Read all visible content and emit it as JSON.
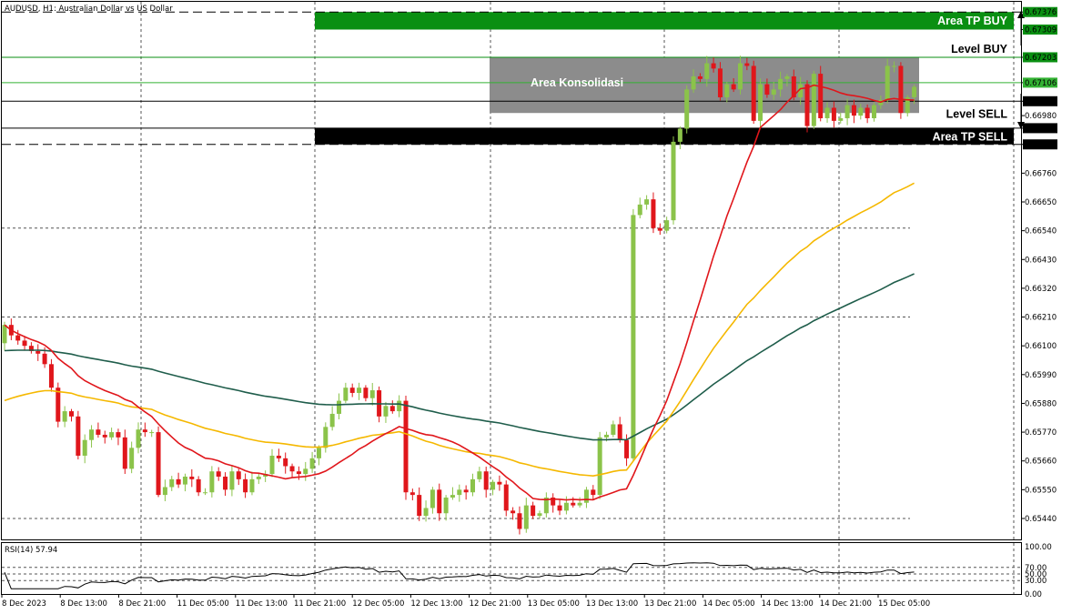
{
  "symbol_header": "AUDUSD, H1:  Australian Dollar vs US Dollar",
  "rsi_label": "RSI(14) 57.94",
  "colors": {
    "bull": "#8bc34a",
    "bear": "#e0161b",
    "ma_fast": "#e0161b",
    "ma_mid": "#f5b800",
    "ma_slow": "#1f5d4b",
    "tp_buy": "#0a8f12",
    "tp_sell": "#000000",
    "consolidation": "#8c8c8c"
  },
  "price_axis": {
    "min": 0.6536,
    "max": 0.67415,
    "ticks": [
      "0.67203",
      "0.67106",
      "0.67035",
      "0.66980",
      "0.66932",
      "0.66870",
      "0.66760",
      "0.66650",
      "0.66540",
      "0.66430",
      "0.66320",
      "0.66210",
      "0.66100",
      "0.65990",
      "0.65880",
      "0.65770",
      "0.65660",
      "0.65550",
      "0.65440"
    ],
    "highlighted_ticks": [
      "0.67376",
      "0.67309",
      "0.67203",
      "0.67106"
    ],
    "dark_ticks": [
      "0.67035",
      "0.66932",
      "0.66870"
    ]
  },
  "time_axis": {
    "labels": [
      "8 Dec 2023",
      "8 Dec 13:00",
      "8 Dec 21:00",
      "11 Dec 05:00",
      "11 Dec 13:00",
      "11 Dec 21:00",
      "12 Dec 05:00",
      "12 Dec 13:00",
      "12 Dec 21:00",
      "13 Dec 05:00",
      "13 Dec 13:00",
      "13 Dec 21:00",
      "14 Dec 05:00",
      "14 Dec 13:00",
      "14 Dec 21:00",
      "15 Dec 05:00"
    ]
  },
  "rsi_axis": {
    "ticks": [
      "100.00",
      "70.00",
      "50.00",
      "30.00",
      "0.00"
    ]
  },
  "annotations": {
    "tp_buy_label": "Area TP BUY",
    "level_buy_label": "Level BUY",
    "consolidation_label": "Area Konsolidasi",
    "level_sell_label": "Level SELL",
    "tp_sell_label": "Area TP SELL",
    "tp_buy_zone": [
      0.67309,
      0.67376
    ],
    "level_buy": 0.67203,
    "consolidation_zone": [
      0.6699,
      0.67203
    ],
    "level_sell": 0.67035,
    "tp_sell_zone": [
      0.6687,
      0.66932
    ]
  },
  "chart_data": {
    "type": "candlestick",
    "open": [
      0.6611,
      0.6618,
      0.6614,
      0.6612,
      0.661,
      0.6608,
      0.6607,
      0.6603,
      0.6594,
      0.6581,
      0.6585,
      0.6583,
      0.6568,
      0.6574,
      0.6578,
      0.6576,
      0.6575,
      0.6577,
      0.6575,
      0.6563,
      0.6571,
      0.6578,
      0.6577,
      0.6577,
      0.6553,
      0.6556,
      0.6559,
      0.6557,
      0.656,
      0.6559,
      0.6554,
      0.6554,
      0.6562,
      0.656,
      0.6555,
      0.6562,
      0.6559,
      0.6554,
      0.6559,
      0.656,
      0.6561,
      0.6568,
      0.6567,
      0.6564,
      0.6562,
      0.6561,
      0.6563,
      0.6567,
      0.6571,
      0.6579,
      0.6584,
      0.6589,
      0.6594,
      0.6592,
      0.6594,
      0.659,
      0.6593,
      0.6583,
      0.6587,
      0.6585,
      0.6589,
      0.6554,
      0.6553,
      0.6545,
      0.6548,
      0.6555,
      0.6546,
      0.6552,
      0.6553,
      0.6555,
      0.6554,
      0.6559,
      0.6562,
      0.6555,
      0.6558,
      0.6557,
      0.6547,
      0.6546,
      0.654,
      0.6549,
      0.6545,
      0.6546,
      0.6552,
      0.6549,
      0.6547,
      0.655,
      0.6549,
      0.655,
      0.6555,
      0.6553,
      0.6575,
      0.6576,
      0.658,
      0.6574,
      0.6567,
      0.666,
      0.6664,
      0.6666,
      0.6655,
      0.6654,
      0.6658,
      0.6688,
      0.6693,
      0.6708,
      0.6713,
      0.6712,
      0.6718,
      0.6716,
      0.6705,
      0.671,
      0.6708,
      0.6718,
      0.6717,
      0.6696,
      0.671,
      0.6706,
      0.6708,
      0.6712,
      0.6713,
      0.6705,
      0.671,
      0.6694,
      0.6714,
      0.6697,
      0.6701,
      0.6696,
      0.6697,
      0.6702,
      0.6698,
      0.6701,
      0.6697,
      0.6702,
      0.6704,
      0.6717,
      0.6717,
      0.6699,
      0.6705
    ],
    "close": [
      0.6618,
      0.6614,
      0.6612,
      0.661,
      0.6608,
      0.6607,
      0.6603,
      0.6594,
      0.6581,
      0.6585,
      0.6583,
      0.6568,
      0.6574,
      0.6578,
      0.6576,
      0.6575,
      0.6577,
      0.6575,
      0.6563,
      0.6571,
      0.6578,
      0.6577,
      0.6577,
      0.6553,
      0.6556,
      0.6559,
      0.6557,
      0.656,
      0.6559,
      0.6554,
      0.6554,
      0.6562,
      0.656,
      0.6555,
      0.6562,
      0.6559,
      0.6554,
      0.6559,
      0.656,
      0.6561,
      0.6568,
      0.6567,
      0.6564,
      0.6562,
      0.6561,
      0.6563,
      0.6567,
      0.6571,
      0.6579,
      0.6584,
      0.6589,
      0.6594,
      0.6592,
      0.6594,
      0.659,
      0.6593,
      0.6583,
      0.6587,
      0.6585,
      0.6589,
      0.6554,
      0.6553,
      0.6545,
      0.6548,
      0.6555,
      0.6546,
      0.6552,
      0.6553,
      0.6555,
      0.6554,
      0.6559,
      0.6562,
      0.6555,
      0.6558,
      0.6557,
      0.6547,
      0.6546,
      0.654,
      0.6549,
      0.6545,
      0.6546,
      0.6552,
      0.6549,
      0.6547,
      0.655,
      0.6549,
      0.655,
      0.6555,
      0.6553,
      0.6575,
      0.6576,
      0.658,
      0.6574,
      0.6567,
      0.666,
      0.6664,
      0.6666,
      0.6655,
      0.6654,
      0.6658,
      0.6688,
      0.6693,
      0.6708,
      0.6713,
      0.6712,
      0.6718,
      0.6716,
      0.6705,
      0.671,
      0.6708,
      0.6718,
      0.6717,
      0.6696,
      0.671,
      0.6706,
      0.6708,
      0.6712,
      0.6713,
      0.6705,
      0.671,
      0.6694,
      0.6714,
      0.6697,
      0.6701,
      0.6696,
      0.6697,
      0.6702,
      0.6698,
      0.6701,
      0.6697,
      0.6702,
      0.6704,
      0.6717,
      0.6717,
      0.6699,
      0.6705,
      0.6709
    ]
  }
}
